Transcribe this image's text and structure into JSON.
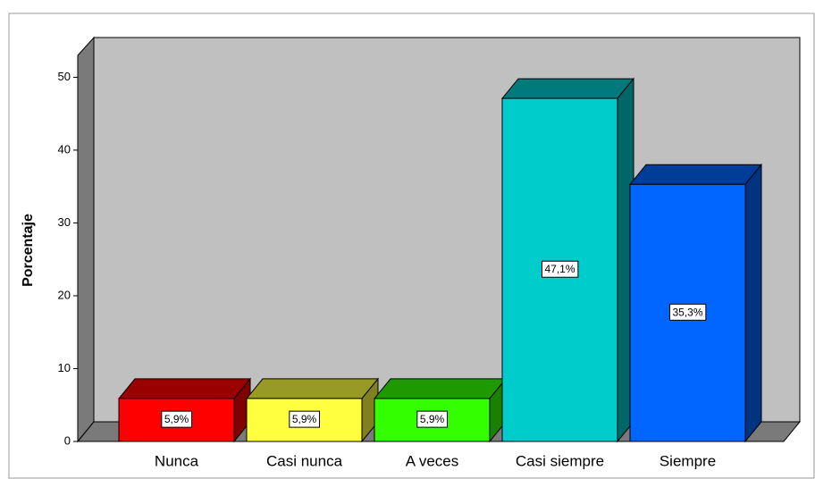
{
  "chart_data": {
    "type": "bar3d",
    "ylabel": "Porcentaje",
    "categories": [
      "Nunca",
      "Casi nunca",
      "A veces",
      "Casi siempre",
      "Siempre"
    ],
    "values": [
      5.9,
      5.9,
      5.9,
      47.1,
      35.3
    ],
    "value_labels": [
      "5,9%",
      "5,9%",
      "5,9%",
      "47,1%",
      "35,3%"
    ],
    "colors": [
      "#ff0000",
      "#ffff40",
      "#33ff00",
      "#00cccc",
      "#0066ff"
    ],
    "ylim": [
      0,
      53
    ],
    "yticks": [
      0,
      10,
      20,
      30,
      40,
      50
    ]
  }
}
